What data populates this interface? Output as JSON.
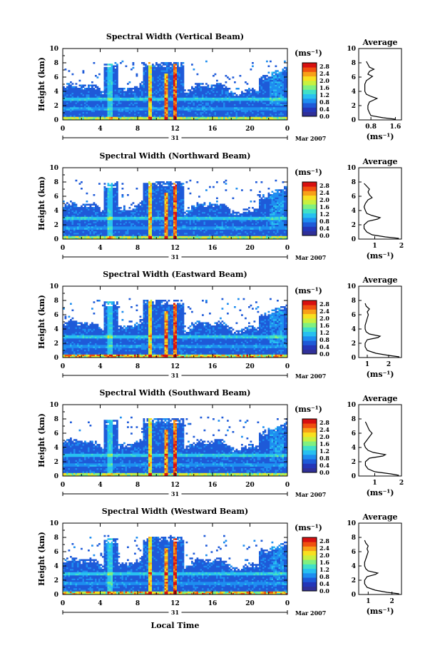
{
  "chart_data": {
    "type": "heatmap",
    "common": {
      "xlabel": "Local Time",
      "ylabel": "Height (km)",
      "xticks": [
        "0",
        "4",
        "8",
        "12",
        "16",
        "20",
        "0"
      ],
      "yticks": [
        "0",
        "2",
        "4",
        "6",
        "8",
        "10"
      ],
      "xlim": [
        0,
        24
      ],
      "ylim": [
        0,
        10
      ],
      "date_label": "31",
      "date_suffix": "Mar 2007",
      "colorbar_unit": "(ms⁻¹)",
      "colorbar_ticks": [
        "0.0",
        "0.4",
        "0.8",
        "1.2",
        "1.6",
        "2.0",
        "2.4",
        "2.8"
      ],
      "colorbar_range": [
        0,
        3.0
      ],
      "average_title": "Average",
      "average_xlabel": "(ms⁻¹)",
      "average_yticks": [
        "0",
        "2",
        "4",
        "6",
        "8",
        "10"
      ]
    },
    "panels": [
      {
        "title": "Spectral Width (Vertical Beam)",
        "average_xticks": [
          "0.8",
          "1.6"
        ],
        "average_xlim": [
          0.4,
          1.8
        ],
        "average_profile": {
          "height": [
            0.1,
            0.3,
            0.6,
            1.0,
            1.5,
            2.0,
            2.5,
            2.8,
            3.0,
            3.3,
            3.6,
            4.0,
            4.5,
            5.0,
            5.5,
            5.8,
            6.1,
            6.4,
            6.8,
            7.1,
            7.4,
            7.8,
            8.2
          ],
          "value": [
            1.6,
            1.2,
            0.8,
            0.75,
            0.7,
            0.7,
            0.75,
            0.9,
            1.0,
            0.8,
            0.65,
            0.6,
            0.6,
            0.6,
            0.65,
            0.75,
            0.85,
            0.7,
            0.75,
            0.9,
            0.75,
            0.7,
            0.65
          ]
        }
      },
      {
        "title": "Spectral Width (Northward Beam)",
        "average_xticks": [
          "1",
          "2"
        ],
        "average_xlim": [
          0.4,
          2.0
        ],
        "average_profile": {
          "height": [
            0.1,
            0.3,
            0.6,
            1.0,
            1.5,
            2.0,
            2.5,
            2.8,
            3.0,
            3.3,
            3.6,
            4.0,
            4.5,
            5.0,
            5.5,
            5.8,
            6.2,
            6.6,
            7.0,
            7.4,
            7.8
          ],
          "value": [
            1.9,
            1.4,
            0.9,
            0.7,
            0.6,
            0.6,
            0.75,
            1.1,
            1.2,
            0.9,
            0.7,
            0.65,
            0.6,
            0.65,
            0.75,
            0.9,
            0.8,
            0.75,
            0.8,
            0.7,
            0.6
          ]
        }
      },
      {
        "title": "Spectral Width (Eastward Beam)",
        "average_xticks": [
          "1",
          "2"
        ],
        "average_xlim": [
          0.6,
          2.6
        ],
        "average_profile": {
          "height": [
            0.1,
            0.3,
            0.6,
            1.0,
            1.5,
            2.0,
            2.5,
            2.8,
            3.0,
            3.3,
            3.6,
            4.0,
            4.5,
            5.0,
            5.5,
            6.0,
            6.4,
            6.8,
            7.2,
            7.6
          ],
          "value": [
            2.5,
            2.0,
            1.4,
            1.0,
            0.9,
            0.9,
            1.0,
            1.5,
            1.6,
            1.1,
            0.95,
            0.9,
            0.9,
            0.95,
            1.0,
            1.05,
            1.0,
            1.1,
            0.95,
            0.9
          ]
        }
      },
      {
        "title": "Spectral Width (Southward Beam)",
        "average_xticks": [
          "1",
          "2"
        ],
        "average_xlim": [
          0.4,
          2.0
        ],
        "average_profile": {
          "height": [
            0.1,
            0.3,
            0.6,
            1.0,
            1.5,
            2.0,
            2.5,
            2.8,
            3.0,
            3.3,
            3.6,
            4.0,
            4.5,
            5.0,
            5.5,
            6.0,
            6.4,
            6.8,
            7.2,
            7.6
          ],
          "value": [
            1.9,
            1.6,
            1.0,
            0.75,
            0.65,
            0.65,
            0.8,
            1.3,
            1.4,
            0.95,
            0.75,
            0.65,
            0.6,
            0.7,
            0.8,
            0.9,
            0.8,
            0.75,
            0.7,
            0.65
          ]
        }
      },
      {
        "title": "Spectral Width (Westward Beam)",
        "average_xticks": [
          "1",
          "2"
        ],
        "average_xlim": [
          0.6,
          2.4
        ],
        "average_profile": {
          "height": [
            0.1,
            0.3,
            0.6,
            1.0,
            1.5,
            2.0,
            2.5,
            2.8,
            3.0,
            3.3,
            3.6,
            4.0,
            4.5,
            5.0,
            5.5,
            6.0,
            6.4,
            6.8,
            7.2,
            7.6
          ],
          "value": [
            2.3,
            1.8,
            1.3,
            0.95,
            0.85,
            0.85,
            0.95,
            1.3,
            1.4,
            1.0,
            0.9,
            0.85,
            0.85,
            0.9,
            0.95,
            1.0,
            0.95,
            1.0,
            0.9,
            0.85
          ]
        }
      }
    ]
  },
  "colors": {
    "colormap": [
      "#303098",
      "#2436b8",
      "#1e5ad8",
      "#1e8ef0",
      "#28c0f0",
      "#40e0c8",
      "#80f080",
      "#c8f040",
      "#f8e020",
      "#f8a018",
      "#f05010",
      "#d81010"
    ]
  }
}
